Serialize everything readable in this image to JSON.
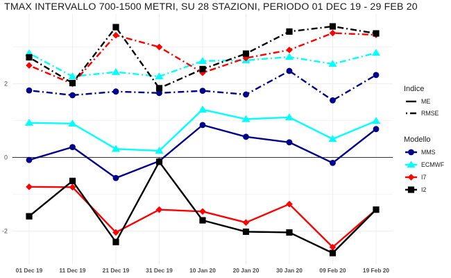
{
  "chart_data": {
    "type": "line",
    "title": "TMAX INTERVALLO 700-1500 METRI, SU 28 STAZIONI, PERIODO 01 DEC 19  -  29 FEB 20",
    "xlabel": "",
    "ylabel": "",
    "categories": [
      "01 Dec 19",
      "11 Dec 19",
      "21 Dec 19",
      "31 Dec 19",
      "10 Jan 20",
      "20 Jan 20",
      "30 Jan 20",
      "09 Feb 20",
      "19 Feb 20"
    ],
    "ylim": [
      -2.9,
      3.9
    ],
    "yticks": [
      -2,
      0,
      2
    ],
    "grid": true,
    "zero_line": true,
    "legend_placement": "right",
    "legends": [
      {
        "title": "Indice",
        "entries": [
          {
            "label": "ME",
            "linetype": "solid"
          },
          {
            "label": "RMSE",
            "linetype": "dotdash"
          }
        ]
      },
      {
        "title": "Modello",
        "entries": [
          {
            "label": "MMS",
            "color": "#00008B",
            "shape": "circle"
          },
          {
            "label": "ECMWF",
            "color": "#00FFFF",
            "shape": "triangle"
          },
          {
            "label": "I7",
            "color": "#FF0000",
            "shape": "diamond"
          },
          {
            "label": "I2",
            "color": "#000000",
            "shape": "square"
          }
        ]
      }
    ],
    "series": [
      {
        "model": "MMS",
        "index": "ME",
        "color": "#00008B",
        "shape": "circle",
        "linetype": "solid",
        "values": [
          -0.07,
          0.28,
          -0.56,
          -0.1,
          0.88,
          0.56,
          0.41,
          -0.15,
          0.77
        ]
      },
      {
        "model": "ECMWF",
        "index": "ME",
        "color": "#00FFFF",
        "shape": "triangle",
        "linetype": "solid",
        "values": [
          0.94,
          0.92,
          0.23,
          0.18,
          1.3,
          1.04,
          1.09,
          0.5,
          0.99
        ]
      },
      {
        "model": "I7",
        "index": "ME",
        "color": "#FF0000",
        "shape": "diamond",
        "linetype": "solid",
        "values": [
          -0.8,
          -0.81,
          -2.04,
          -1.42,
          -1.47,
          -1.77,
          -1.27,
          -2.44,
          -1.42
        ]
      },
      {
        "model": "I2",
        "index": "ME",
        "color": "#000000",
        "shape": "square",
        "linetype": "solid",
        "values": [
          -1.6,
          -0.64,
          -2.3,
          -0.12,
          -1.71,
          -2.02,
          -2.04,
          -2.6,
          -1.42
        ]
      },
      {
        "model": "MMS",
        "index": "RMSE",
        "color": "#00008B",
        "shape": "circle",
        "linetype": "dotdash",
        "values": [
          1.82,
          1.69,
          1.79,
          1.75,
          1.81,
          1.71,
          2.35,
          1.55,
          2.24
        ]
      },
      {
        "model": "ECMWF",
        "index": "RMSE",
        "color": "#00FFFF",
        "shape": "triangle",
        "linetype": "dotdash",
        "values": [
          2.83,
          2.2,
          2.32,
          2.2,
          2.62,
          2.64,
          2.73,
          2.54,
          2.84
        ]
      },
      {
        "model": "I7",
        "index": "RMSE",
        "color": "#FF0000",
        "shape": "diamond",
        "linetype": "dotdash",
        "values": [
          2.5,
          2.0,
          3.32,
          3.0,
          2.3,
          2.7,
          2.92,
          3.38,
          3.33
        ]
      },
      {
        "model": "I2",
        "index": "RMSE",
        "color": "#000000",
        "shape": "square",
        "linetype": "dotdash",
        "values": [
          2.72,
          2.02,
          3.54,
          1.88,
          2.4,
          2.82,
          3.42,
          3.56,
          3.37
        ]
      }
    ]
  }
}
